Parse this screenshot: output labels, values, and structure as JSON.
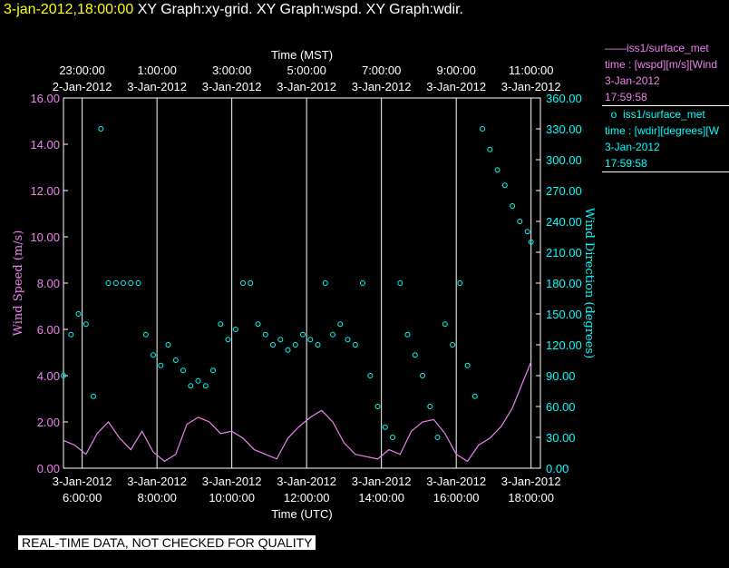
{
  "header": {
    "timestamp": "3-jan-2012,18:00:00",
    "titles": "XY Graph:xy-grid.  XY Graph:wspd.  XY Graph:wdir."
  },
  "colors": {
    "background": "#000000",
    "axes": "#ffffff",
    "wspd": "#ee82ee",
    "wdir": "#00ffff",
    "timestamp": "#ffff00"
  },
  "legend": {
    "wspd": {
      "name": "iss1/surface_met",
      "var": "time : [wspd][m/s][Wind",
      "date": "3-Jan-2012",
      "time": "17:59:58"
    },
    "wdir": {
      "name": "iss1/surface_met",
      "var": "time : [wdir][degrees][W",
      "date": "3-Jan-2012",
      "time": "17:59:58"
    }
  },
  "notice": "REAL-TIME DATA, NOT CHECKED FOR QUALITY",
  "chart_data": {
    "type": "line",
    "grid": true,
    "top_xlabel": "Time (MST)",
    "xlabel": "Time (UTC)",
    "ylabel": "Wind Speed (m/s)",
    "y2label": "Wind Direction (degrees)",
    "x_range_utc_hours": [
      5.5,
      18.25
    ],
    "ylim": [
      0,
      16
    ],
    "y2lim": [
      0,
      360
    ],
    "yticks": [
      "0.00",
      "2.00",
      "4.00",
      "6.00",
      "8.00",
      "10.00",
      "12.00",
      "14.00",
      "16.00"
    ],
    "y2ticks": [
      "0.00",
      "30.00",
      "60.00",
      "90.00",
      "120.00",
      "150.00",
      "180.00",
      "210.00",
      "240.00",
      "270.00",
      "300.00",
      "330.00",
      "360.00"
    ],
    "bottom_ticks": [
      {
        "utc_hour": 6,
        "date": "3-Jan-2012",
        "time": "6:00:00"
      },
      {
        "utc_hour": 8,
        "date": "3-Jan-2012",
        "time": "8:00:00"
      },
      {
        "utc_hour": 10,
        "date": "3-Jan-2012",
        "time": "10:00:00"
      },
      {
        "utc_hour": 12,
        "date": "3-Jan-2012",
        "time": "12:00:00"
      },
      {
        "utc_hour": 14,
        "date": "3-Jan-2012",
        "time": "14:00:00"
      },
      {
        "utc_hour": 16,
        "date": "3-Jan-2012",
        "time": "16:00:00"
      },
      {
        "utc_hour": 18,
        "date": "3-Jan-2012",
        "time": "18:00:00"
      }
    ],
    "top_ticks": [
      {
        "utc_hour": 6,
        "time": "23:00:00",
        "date": "2-Jan-2012"
      },
      {
        "utc_hour": 8,
        "time": "1:00:00",
        "date": "3-Jan-2012"
      },
      {
        "utc_hour": 10,
        "time": "3:00:00",
        "date": "3-Jan-2012"
      },
      {
        "utc_hour": 12,
        "time": "5:00:00",
        "date": "3-Jan-2012"
      },
      {
        "utc_hour": 14,
        "time": "7:00:00",
        "date": "3-Jan-2012"
      },
      {
        "utc_hour": 16,
        "time": "9:00:00",
        "date": "3-Jan-2012"
      },
      {
        "utc_hour": 18,
        "time": "11:00:00",
        "date": "3-Jan-2012"
      }
    ],
    "series": [
      {
        "name": "wspd",
        "axis": "left",
        "style": "line",
        "x": [
          5.5,
          5.8,
          6.1,
          6.4,
          6.7,
          7.0,
          7.3,
          7.6,
          7.9,
          8.2,
          8.5,
          8.8,
          9.1,
          9.4,
          9.7,
          10.0,
          10.3,
          10.6,
          10.9,
          11.2,
          11.5,
          11.8,
          12.1,
          12.4,
          12.7,
          13.0,
          13.3,
          13.6,
          13.9,
          14.2,
          14.5,
          14.8,
          15.1,
          15.4,
          15.7,
          16.0,
          16.3,
          16.6,
          16.9,
          17.2,
          17.5,
          17.8,
          18.0
        ],
        "y": [
          1.2,
          1.0,
          0.6,
          1.5,
          2.0,
          1.3,
          0.8,
          1.6,
          0.7,
          0.3,
          0.6,
          1.9,
          2.2,
          2.0,
          1.5,
          1.6,
          1.3,
          0.8,
          0.6,
          0.4,
          1.3,
          1.8,
          2.2,
          2.5,
          2.0,
          1.1,
          0.6,
          0.5,
          0.4,
          0.8,
          0.6,
          1.6,
          2.0,
          2.1,
          1.5,
          0.6,
          0.3,
          1.0,
          1.3,
          1.8,
          2.6,
          3.8,
          4.6
        ]
      },
      {
        "name": "wdir",
        "axis": "right",
        "style": "markers",
        "x": [
          5.5,
          5.7,
          5.9,
          6.1,
          6.3,
          6.5,
          6.7,
          6.9,
          7.1,
          7.3,
          7.5,
          7.7,
          7.9,
          8.1,
          8.3,
          8.5,
          8.7,
          8.9,
          9.1,
          9.3,
          9.5,
          9.7,
          9.9,
          10.1,
          10.3,
          10.5,
          10.7,
          10.9,
          11.1,
          11.3,
          11.5,
          11.7,
          11.9,
          12.1,
          12.3,
          12.5,
          12.7,
          12.9,
          13.1,
          13.3,
          13.5,
          13.7,
          13.9,
          14.1,
          14.3,
          14.5,
          14.7,
          14.9,
          15.1,
          15.3,
          15.5,
          15.7,
          15.9,
          16.1,
          16.3,
          16.5,
          16.7,
          16.9,
          17.1,
          17.3,
          17.5,
          17.7,
          17.9,
          18.0
        ],
        "y": [
          90,
          130,
          150,
          140,
          70,
          330,
          180,
          180,
          180,
          180,
          180,
          130,
          110,
          100,
          120,
          105,
          95,
          80,
          85,
          80,
          95,
          140,
          125,
          135,
          180,
          180,
          140,
          130,
          120,
          125,
          115,
          120,
          130,
          125,
          120,
          180,
          130,
          140,
          125,
          120,
          180,
          90,
          60,
          40,
          30,
          180,
          130,
          110,
          90,
          60,
          30,
          140,
          120,
          180,
          100,
          70,
          330,
          310,
          290,
          275,
          255,
          240,
          230,
          220
        ]
      }
    ]
  }
}
